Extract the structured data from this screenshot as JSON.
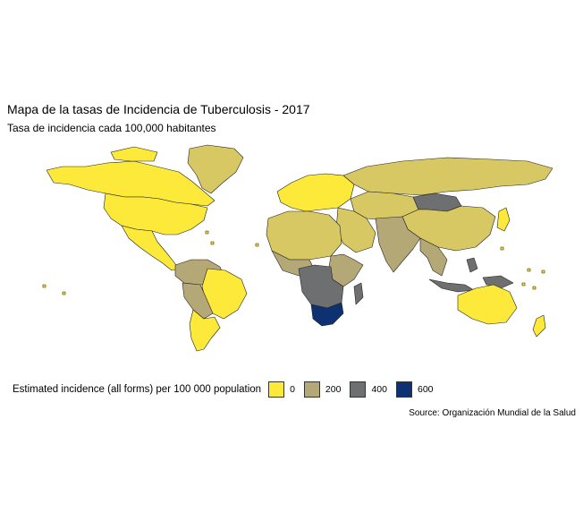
{
  "chart": {
    "title": "Mapa de la tasas de Incidencia de Tuberculosis - 2017",
    "subtitle": "Tasa de incidencia cada 100,000 habitantes",
    "source": "Source: Organización Mundial de la Salud"
  },
  "legend": {
    "title": "Estimated incidence (all forms) per 100 000 population",
    "items": [
      {
        "label": "0",
        "color": "#fde93a"
      },
      {
        "label": "200",
        "color": "#b5a877"
      },
      {
        "label": "400",
        "color": "#6e6f71"
      },
      {
        "label": "600",
        "color": "#0d3171"
      }
    ]
  },
  "colors": {
    "low": "#fde93a",
    "mid_low": "#d8c864",
    "mid": "#b5a877",
    "mid_high": "#6e6f71",
    "high": "#0d3171",
    "border": "#222222"
  }
}
